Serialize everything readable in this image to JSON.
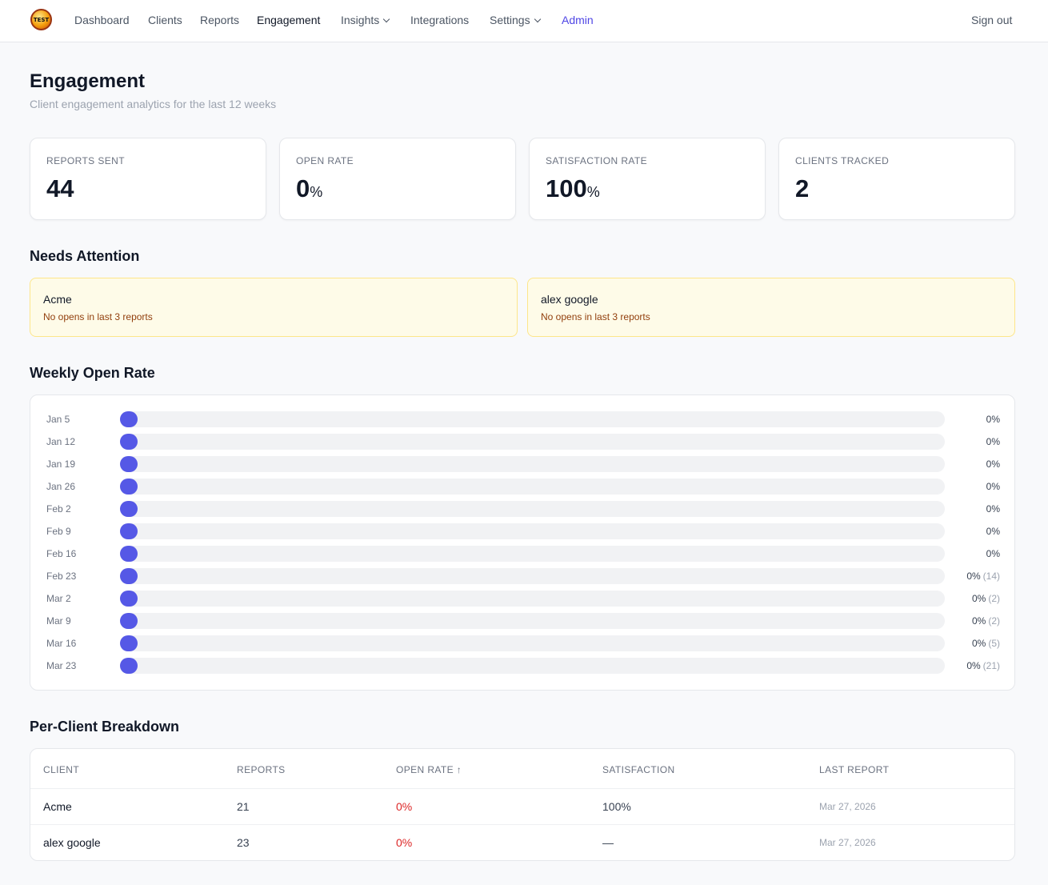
{
  "nav": {
    "logo_text": "TEST",
    "links": [
      "Dashboard",
      "Clients",
      "Reports",
      "Engagement",
      "Insights",
      "Integrations",
      "Settings",
      "Admin"
    ],
    "signout": "Sign out"
  },
  "page": {
    "title": "Engagement",
    "subtitle": "Client engagement analytics for the last 12 weeks"
  },
  "stats": [
    {
      "label": "REPORTS SENT",
      "value": "44",
      "suffix": ""
    },
    {
      "label": "OPEN RATE",
      "value": "0",
      "suffix": "%"
    },
    {
      "label": "SATISFACTION RATE",
      "value": "100",
      "suffix": "%"
    },
    {
      "label": "CLIENTS TRACKED",
      "value": "2",
      "suffix": ""
    }
  ],
  "attention": {
    "title": "Needs Attention",
    "items": [
      {
        "name": "Acme",
        "message": "No opens in last 3 reports"
      },
      {
        "name": "alex google",
        "message": "No opens in last 3 reports"
      }
    ]
  },
  "weekly": {
    "title": "Weekly Open Rate",
    "bar_color": "#5558e6",
    "rows": [
      {
        "week": "Jan 5",
        "rate": "0%",
        "count": "",
        "value": 0
      },
      {
        "week": "Jan 12",
        "rate": "0%",
        "count": "",
        "value": 0
      },
      {
        "week": "Jan 19",
        "rate": "0%",
        "count": "",
        "value": 0
      },
      {
        "week": "Jan 26",
        "rate": "0%",
        "count": "",
        "value": 0
      },
      {
        "week": "Feb 2",
        "rate": "0%",
        "count": "",
        "value": 0
      },
      {
        "week": "Feb 9",
        "rate": "0%",
        "count": "",
        "value": 0
      },
      {
        "week": "Feb 16",
        "rate": "0%",
        "count": "",
        "value": 0
      },
      {
        "week": "Feb 23",
        "rate": "0%",
        "count": "(14)",
        "value": 0
      },
      {
        "week": "Mar 2",
        "rate": "0%",
        "count": "(2)",
        "value": 0
      },
      {
        "week": "Mar 9",
        "rate": "0%",
        "count": "(2)",
        "value": 0
      },
      {
        "week": "Mar 16",
        "rate": "0%",
        "count": "(5)",
        "value": 0
      },
      {
        "week": "Mar 23",
        "rate": "0%",
        "count": "(21)",
        "value": 0
      }
    ]
  },
  "breakdown": {
    "title": "Per-Client Breakdown",
    "headers": [
      "CLIENT",
      "REPORTS",
      "OPEN RATE ↑",
      "SATISFACTION",
      "LAST REPORT"
    ],
    "rows": [
      {
        "client": "Acme",
        "reports": "21",
        "open_rate": "0%",
        "satisfaction": "100%",
        "last_report": "Mar 27, 2026"
      },
      {
        "client": "alex google",
        "reports": "23",
        "open_rate": "0%",
        "satisfaction": "—",
        "last_report": "Mar 27, 2026"
      }
    ]
  }
}
